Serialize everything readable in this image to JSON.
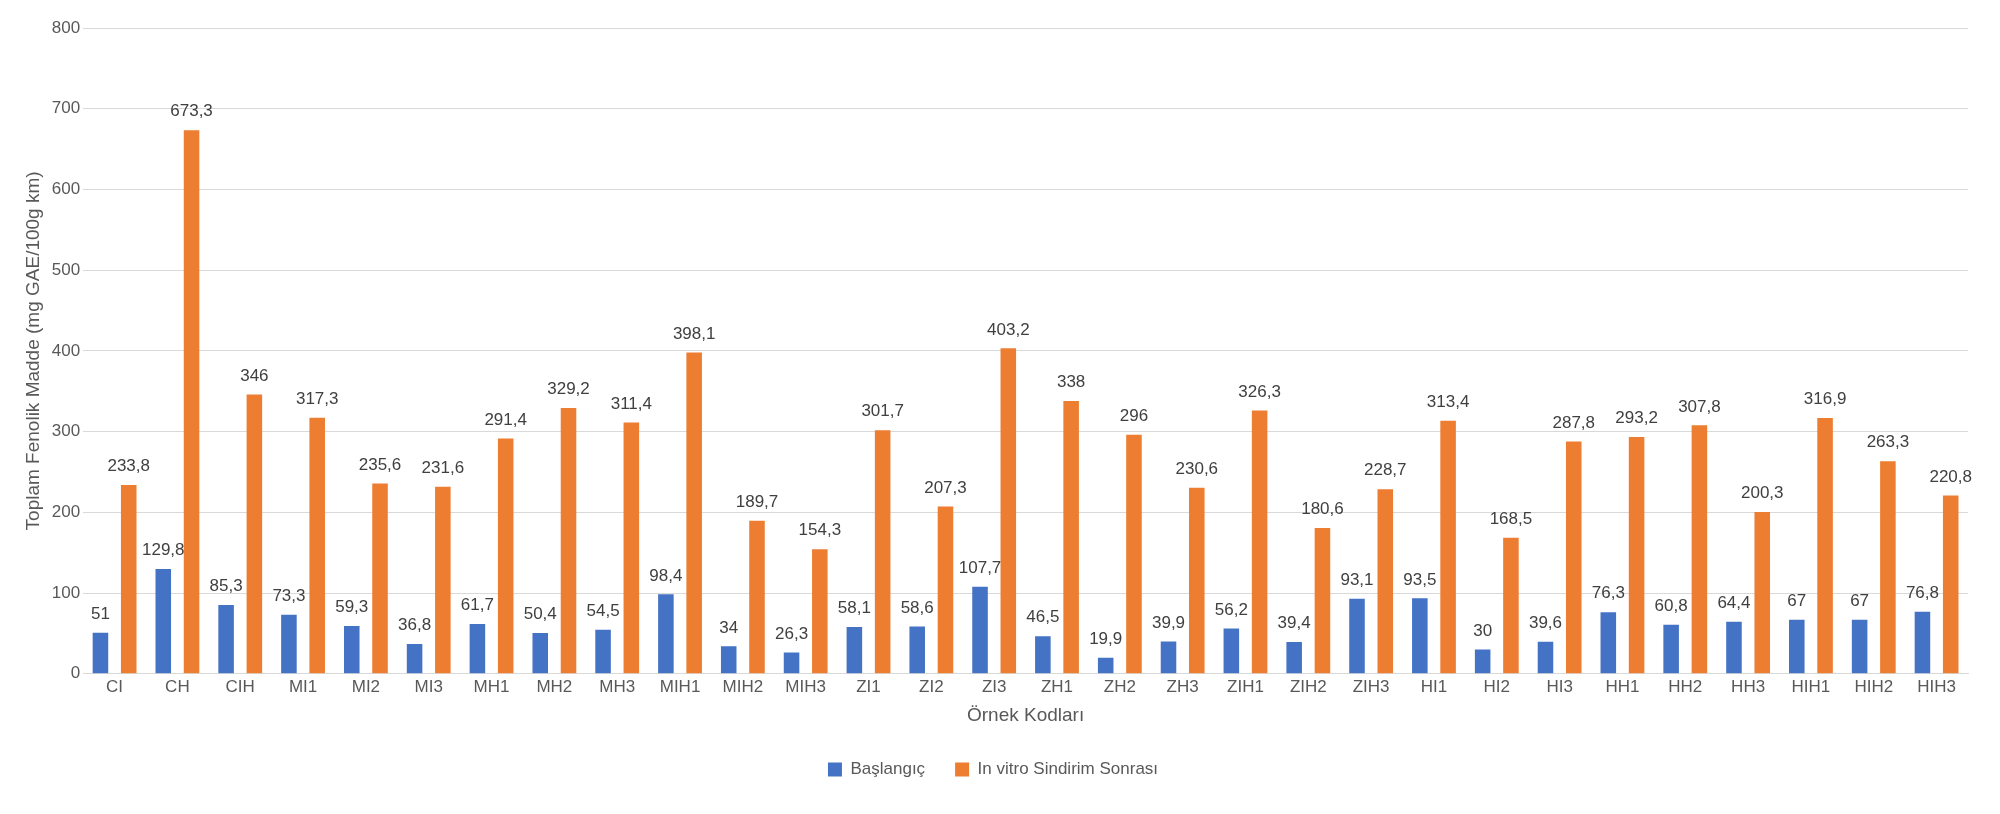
{
  "chart_data": {
    "type": "bar",
    "xlabel": "Örnek Kodları",
    "ylabel": "Toplam Fenolik Madde (mg GAE/100g km)",
    "categories": [
      "CI",
      "CH",
      "CIH",
      "MI1",
      "MI2",
      "MI3",
      "MH1",
      "MH2",
      "MH3",
      "MIH1",
      "MIH2",
      "MIH3",
      "ZI1",
      "ZI2",
      "ZI3",
      "ZH1",
      "ZH2",
      "ZH3",
      "ZIH1",
      "ZIH2",
      "ZIH3",
      "HI1",
      "HI2",
      "HI3",
      "HH1",
      "HH2",
      "HH3",
      "HIH1",
      "HIH2",
      "HIH3"
    ],
    "series": [
      {
        "name": "Başlangıç",
        "color": "#4472c4",
        "values": [
          51,
          129.8,
          85.3,
          73.3,
          59.3,
          36.8,
          61.7,
          50.4,
          54.5,
          98.4,
          34,
          26.3,
          58.1,
          58.6,
          107.7,
          46.5,
          19.9,
          39.9,
          56.2,
          39.4,
          93.1,
          93.5,
          30,
          39.6,
          76.3,
          60.8,
          64.4,
          67,
          67,
          76.8
        ],
        "value_labels": [
          "51",
          "129,8",
          "85,3",
          "73,3",
          "59,3",
          "36,8",
          "61,7",
          "50,4",
          "54,5",
          "98,4",
          "34",
          "26,3",
          "58,1",
          "58,6",
          "107,7",
          "46,5",
          "19,9",
          "39,9",
          "56,2",
          "39,4",
          "93,1",
          "93,5",
          "30",
          "39,6",
          "76,3",
          "60,8",
          "64,4",
          "67",
          "67",
          "76,8"
        ]
      },
      {
        "name": "In vitro Sindirim Sonrası",
        "color": "#ed7d31",
        "values": [
          233.8,
          673.3,
          346,
          317.3,
          235.6,
          231.6,
          291.4,
          329.2,
          311.4,
          398.1,
          189.7,
          154.3,
          301.7,
          207.3,
          403.2,
          338,
          296,
          230.6,
          326.3,
          180.6,
          228.7,
          313.4,
          168.5,
          287.8,
          293.2,
          307.8,
          200.3,
          316.9,
          263.3,
          220.8
        ],
        "value_labels": [
          "233,8",
          "673,3",
          "346",
          "317,3",
          "235,6",
          "231,6",
          "291,4",
          "329,2",
          "311,4",
          "398,1",
          "189,7",
          "154,3",
          "301,7",
          "207,3",
          "403,2",
          "338",
          "296",
          "230,6",
          "326,3",
          "180,6",
          "228,7",
          "313,4",
          "168,5",
          "287,8",
          "293,2",
          "307,8",
          "200,3",
          "316,9",
          "263,3",
          "220,8"
        ]
      }
    ],
    "ylim": [
      0,
      800
    ],
    "yticks": [
      0,
      100,
      200,
      300,
      400,
      500,
      600,
      700,
      800
    ],
    "grid": "y",
    "legend": "bottom"
  }
}
